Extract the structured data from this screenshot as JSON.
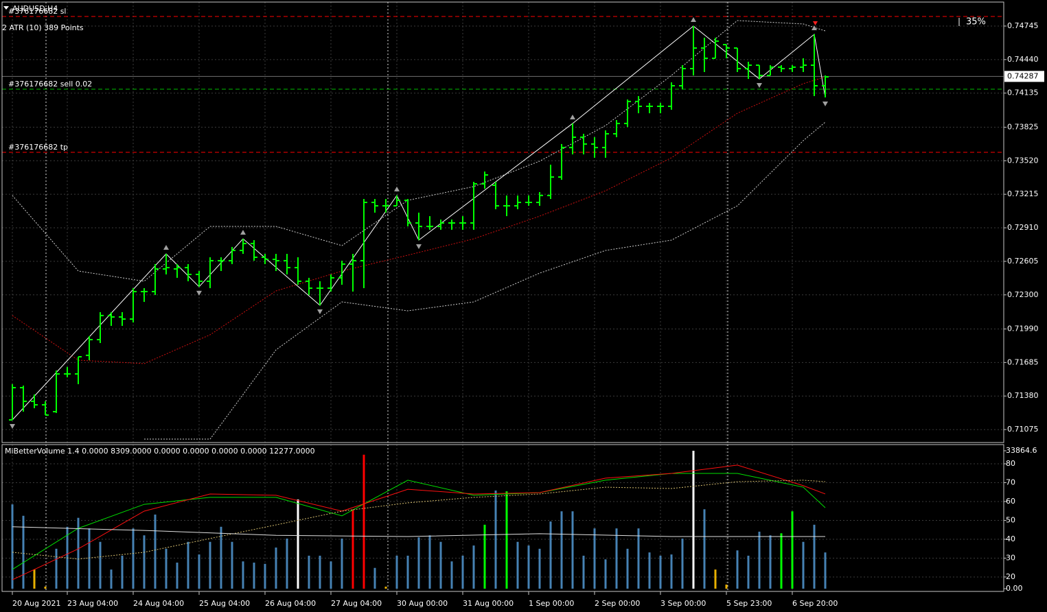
{
  "chart_data": [
    {
      "type": "ohlc",
      "title": "AUDUSD,H4",
      "subtitle": "2 ATR (10) 389 Points",
      "annotation": "35%",
      "color": "#00ff00",
      "open": [
        0.71163,
        0.71456,
        0.71332,
        0.713,
        0.71238,
        0.71581,
        0.71581,
        0.7175,
        0.71893,
        0.72112,
        0.72099,
        0.7208,
        0.7233,
        0.7233,
        0.72536,
        0.72536,
        0.72548,
        0.72486,
        0.72424,
        0.72611,
        0.72611,
        0.72704,
        0.72767,
        0.72642,
        0.72623,
        0.72611,
        0.72548,
        0.72424,
        0.72361,
        0.72361,
        0.72455,
        0.7258,
        0.72611,
        0.73141,
        0.7311,
        0.7311,
        0.7316,
        0.72954,
        0.72923,
        0.72923,
        0.72954,
        0.72954,
        0.72954,
        0.7331,
        0.73297,
        0.7311,
        0.7311,
        0.73141,
        0.73141,
        0.73204,
        0.73372,
        0.7364,
        0.73734,
        0.73672,
        0.7364,
        0.73765,
        0.73859,
        0.74059,
        0.74015,
        0.74015,
        0.74015,
        0.74202,
        0.74358,
        0.74545,
        0.74452,
        0.74576,
        0.74545,
        0.74358,
        0.74389,
        0.74296,
        0.74371,
        0.74358,
        0.74371,
        0.74389,
        0.74202
      ],
      "high": [
        0.71488,
        0.71475,
        0.71394,
        0.71332,
        0.71612,
        0.71644,
        0.71737,
        0.71924,
        0.72143,
        0.72143,
        0.72143,
        0.72361,
        0.72361,
        0.7258,
        0.72673,
        0.7258,
        0.7258,
        0.72517,
        0.72642,
        0.72642,
        0.72736,
        0.7281,
        0.72798,
        0.72673,
        0.72673,
        0.72673,
        0.72642,
        0.72455,
        0.72424,
        0.72486,
        0.72611,
        0.72673,
        0.73172,
        0.73172,
        0.73172,
        0.73204,
        0.73172,
        0.73048,
        0.73016,
        0.72985,
        0.72985,
        0.73016,
        0.73328,
        0.73422,
        0.73328,
        0.73204,
        0.73204,
        0.73204,
        0.73235,
        0.73484,
        0.73672,
        0.73859,
        0.73765,
        0.73734,
        0.73796,
        0.7389,
        0.74077,
        0.74108,
        0.74046,
        0.74046,
        0.74233,
        0.74389,
        0.74745,
        0.74639,
        0.74639,
        0.74576,
        0.74545,
        0.7442,
        0.74389,
        0.74389,
        0.74389,
        0.74389,
        0.74452,
        0.7467,
        0.74296
      ],
      "low": [
        0.71163,
        0.71238,
        0.71269,
        0.71207,
        0.71226,
        0.7155,
        0.71488,
        0.71706,
        0.71862,
        0.72018,
        0.72018,
        0.72049,
        0.72236,
        0.72299,
        0.72486,
        0.72455,
        0.72424,
        0.72374,
        0.72361,
        0.72517,
        0.7258,
        0.72673,
        0.72611,
        0.7258,
        0.72517,
        0.72486,
        0.72392,
        0.72299,
        0.72205,
        0.7233,
        0.72392,
        0.7233,
        0.72361,
        0.73048,
        0.73048,
        0.7311,
        0.72923,
        0.72798,
        0.72892,
        0.72892,
        0.72892,
        0.72892,
        0.72892,
        0.73266,
        0.73079,
        0.73016,
        0.73079,
        0.7311,
        0.7311,
        0.73172,
        0.73347,
        0.73578,
        0.73578,
        0.73547,
        0.73547,
        0.73734,
        0.73828,
        0.73952,
        0.73952,
        0.73952,
        0.73984,
        0.74171,
        0.74296,
        0.74327,
        0.74452,
        0.74452,
        0.74327,
        0.74264,
        0.74264,
        0.74296,
        0.74327,
        0.74327,
        0.74327,
        0.74108,
        0.74096
      ],
      "close": [
        0.71456,
        0.71332,
        0.713,
        0.71207,
        0.71581,
        0.71581,
        0.71737,
        0.71893,
        0.72112,
        0.72099,
        0.7208,
        0.7233,
        0.7233,
        0.72536,
        0.72548,
        0.72548,
        0.72486,
        0.72424,
        0.72611,
        0.72611,
        0.72704,
        0.72767,
        0.72642,
        0.72623,
        0.72611,
        0.72548,
        0.72424,
        0.72361,
        0.72361,
        0.72455,
        0.7258,
        0.72611,
        0.73141,
        0.7311,
        0.7311,
        0.7316,
        0.72954,
        0.72923,
        0.72923,
        0.72954,
        0.72954,
        0.72954,
        0.7331,
        0.73391,
        0.7311,
        0.7311,
        0.73141,
        0.73141,
        0.73204,
        0.73372,
        0.7364,
        0.73734,
        0.73672,
        0.7364,
        0.73765,
        0.73859,
        0.74059,
        0.74015,
        0.74015,
        0.74015,
        0.74202,
        0.74358,
        0.74545,
        0.74452,
        0.74608,
        0.74545,
        0.74358,
        0.74389,
        0.74296,
        0.74371,
        0.74358,
        0.74371,
        0.74389,
        0.74202,
        0.74283
      ],
      "ylim": [
        0.70957,
        0.74957
      ],
      "yticks": [
        0.71075,
        {
          "value": 0.7138,
          "label": "0.71380"
        },
        0.71685,
        {
          "value": 0.7199,
          "label": "0.71990"
        },
        {
          "value": 0.723,
          "label": "0.72300"
        },
        0.72605,
        {
          "value": 0.7291,
          "label": "0.72910"
        },
        0.73215,
        {
          "value": 0.7352,
          "label": "0.73520"
        },
        0.73825,
        0.74135,
        {
          "value": 0.7444,
          "label": "0.74440"
        },
        0.74745
      ],
      "xticks": [
        {
          "value": 0,
          "label": "20 Aug 2021"
        },
        {
          "value": 5,
          "label": "23 Aug 04:00"
        },
        {
          "value": 11,
          "label": "24 Aug 04:00"
        },
        {
          "value": 17,
          "label": "25 Aug 04:00"
        },
        {
          "value": 23,
          "label": "26 Aug 04:00"
        },
        {
          "value": 29,
          "label": "27 Aug 04:00"
        },
        {
          "value": 35,
          "label": "30 Aug 00:00"
        },
        {
          "value": 41,
          "label": "31 Aug 00:00"
        },
        {
          "value": 47,
          "label": "1 Sep 00:00"
        },
        {
          "value": 53,
          "label": "2 Sep 00:00"
        },
        {
          "value": 59,
          "label": "3 Sep 00:00"
        },
        {
          "value": 65,
          "label": "5 Sep 23:00"
        },
        {
          "value": 71,
          "label": "6 Sep 20:00"
        }
      ],
      "grid": true,
      "series": [
        {
          "color": "#d0d0d0",
          "style": "dotted",
          "x": [
            0,
            6,
            12,
            18,
            24,
            30,
            36,
            42,
            48,
            54,
            60,
            66,
            72,
            74
          ],
          "values": [
            0.73204,
            0.72517,
            0.72424,
            0.72923,
            0.72923,
            0.72748,
            0.7316,
            0.73285,
            0.73516,
            0.7384,
            0.74296,
            0.74795,
            0.74764,
            0.74701
          ]
        },
        {
          "color": "#d0d0d0",
          "style": "dotted",
          "x": [
            0,
            6,
            12,
            18,
            24,
            30,
            36,
            42,
            48,
            54,
            60,
            66,
            72,
            74
          ],
          "values": [
            null,
            null,
            0.70988,
            0.70988,
            0.718,
            0.72236,
            0.72155,
            0.72236,
            0.72498,
            0.72704,
            0.72798,
            0.7311,
            0.73703,
            0.73871
          ]
        },
        {
          "color": "#d01010",
          "style": "dotted",
          "x": [
            0,
            6,
            12,
            18,
            24,
            30,
            36,
            42,
            48,
            54,
            60,
            66,
            72,
            74
          ],
          "values": [
            0.72112,
            0.71706,
            0.71675,
            0.71937,
            0.72336,
            0.72517,
            0.72661,
            0.7281,
            0.73016,
            0.73247,
            0.73547,
            0.73952,
            0.74221,
            0.74283
          ]
        },
        {
          "color": "#ffffff",
          "style": "solid",
          "arrows": "#a0a0a0",
          "x": [
            0,
            14,
            17,
            21,
            28,
            35,
            37,
            51,
            62,
            68,
            73,
            74
          ],
          "values": [
            0.71163,
            0.72673,
            0.72374,
            0.7281,
            0.72205,
            0.73204,
            0.72798,
            0.73859,
            0.74745,
            0.74264,
            0.7467,
            0.74096
          ]
        }
      ],
      "levels": [
        {
          "label": "#376176682 sl",
          "value": 0.74832,
          "color": "#ff0000"
        },
        {
          "label": "#376176682 sell 0.02",
          "value": 0.74171,
          "color": "#00c000"
        },
        {
          "label": "#376176682 tp",
          "value": 0.73597,
          "color": "#ff0000"
        }
      ],
      "bid": {
        "value": 0.74287,
        "color": "#707070"
      }
    },
    {
      "type": "bar",
      "title": "MiBetterVolume 1.4 0.0000 8309.0000 0.0000 0.0000 0.0000 0.0000 12277.0000",
      "values": [
        20700,
        17900,
        4700,
        500,
        9800,
        15200,
        17400,
        14800,
        11500,
        4700,
        8100,
        14800,
        13100,
        18200,
        9800,
        6400,
        11500,
        8400,
        11500,
        15200,
        11500,
        6700,
        6400,
        6100,
        10100,
        12300,
        21900,
        8100,
        8100,
        6700,
        12300,
        19500,
        32900,
        5100,
        500,
        8100,
        8100,
        12600,
        13100,
        11500,
        6700,
        8100,
        10600,
        15700,
        24100,
        23900,
        11500,
        10600,
        9800,
        16500,
        19000,
        19000,
        8100,
        14800,
        7200,
        14800,
        9800,
        14800,
        8900,
        8100,
        8400,
        12300,
        33864.6,
        19500,
        4700,
        1000,
        9400,
        8100,
        14000,
        13100,
        13600,
        19000,
        11500,
        15700,
        8900
      ],
      "colors": [
        "#4682b4",
        "#4682b4",
        "#e8b000",
        "#e8b000",
        "#4682b4",
        "#4682b4",
        "#4682b4",
        "#4682b4",
        "#4682b4",
        "#4682b4",
        "#4682b4",
        "#4682b4",
        "#4682b4",
        "#4682b4",
        "#4682b4",
        "#4682b4",
        "#4682b4",
        "#4682b4",
        "#4682b4",
        "#4682b4",
        "#4682b4",
        "#4682b4",
        "#4682b4",
        "#4682b4",
        "#4682b4",
        "#4682b4",
        "#ffffff",
        "#4682b4",
        "#4682b4",
        "#4682b4",
        "#4682b4",
        "#ff0000",
        "#ff0000",
        "#4682b4",
        "#e8b000",
        "#4682b4",
        "#4682b4",
        "#4682b4",
        "#4682b4",
        "#4682b4",
        "#4682b4",
        "#4682b4",
        "#4682b4",
        "#00ff00",
        "#4682b4",
        "#00ff00",
        "#4682b4",
        "#4682b4",
        "#4682b4",
        "#4682b4",
        "#4682b4",
        "#4682b4",
        "#4682b4",
        "#4682b4",
        "#4682b4",
        "#4682b4",
        "#4682b4",
        "#4682b4",
        "#4682b4",
        "#4682b4",
        "#4682b4",
        "#4682b4",
        "#ffffff",
        "#4682b4",
        "#e8b000",
        "#e8b000",
        "#4682b4",
        "#4682b4",
        "#4682b4",
        "#4682b4",
        "#00ff00",
        "#00ff00",
        "#4682b4",
        "#4682b4",
        "#4682b4"
      ],
      "ylim": [
        0,
        33864.6
      ],
      "yticks": [
        {
          "value": 0,
          "label": "0.00"
        },
        33864.6
      ],
      "y2lim": [
        13.8,
        86.9
      ],
      "y2ticks": [
        20,
        30,
        40,
        50,
        60,
        70,
        80
      ],
      "series": [
        {
          "color": "#00e000",
          "style": "solid",
          "axis": "y2",
          "x": [
            0,
            6,
            12,
            18,
            24,
            30,
            36,
            42,
            48,
            54,
            60,
            66,
            72,
            74
          ],
          "values": [
            24,
            45.8,
            58.5,
            62.2,
            62.2,
            52.4,
            71.3,
            63.3,
            64.7,
            71.3,
            74.9,
            74.9,
            67.6,
            56.7
          ]
        },
        {
          "color": "#ff1010",
          "style": "solid",
          "axis": "y2",
          "x": [
            0,
            6,
            12,
            18,
            24,
            30,
            36,
            42,
            48,
            54,
            60,
            66,
            72,
            74
          ],
          "values": [
            18.5,
            34.9,
            54.9,
            64,
            63.3,
            54.9,
            66.5,
            64,
            64.7,
            72.4,
            74.9,
            79.3,
            68.4,
            64
          ]
        },
        {
          "color": "#d8c070",
          "style": "dotted",
          "axis": "y2",
          "x": [
            0,
            6,
            12,
            18,
            24,
            30,
            36,
            42,
            48,
            54,
            60,
            66,
            72,
            74
          ],
          "values": [
            33.1,
            29.5,
            33.1,
            40.4,
            47.6,
            54.9,
            59.3,
            62.2,
            64,
            67.6,
            66.9,
            70.5,
            71.3,
            70.5
          ]
        },
        {
          "color": "#e0e0e0",
          "style": "solid",
          "axis": "y",
          "x": [
            0,
            12,
            24,
            36,
            48,
            60,
            74
          ],
          "values": [
            15200,
            14300,
            13100,
            12800,
            13500,
            12800,
            12800
          ]
        }
      ]
    }
  ]
}
